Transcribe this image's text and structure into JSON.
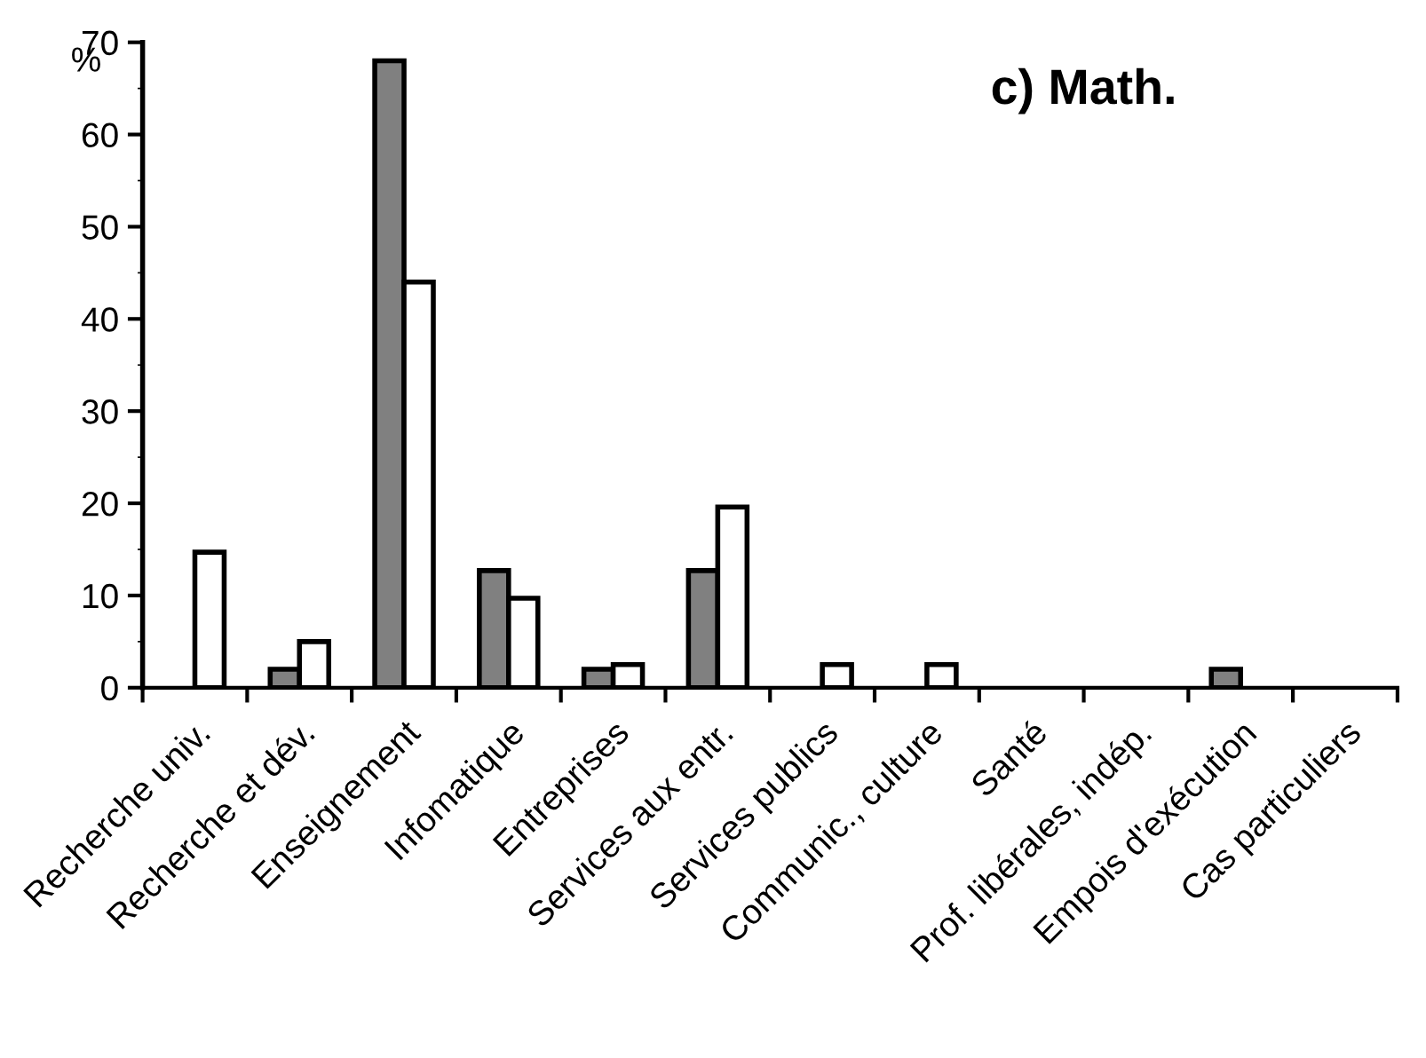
{
  "chart_data": {
    "type": "bar",
    "title": "c) Math.",
    "ylabel": "%",
    "categories": [
      "Recherche univ.",
      "Recherche et dév.",
      "Enseignement",
      "Infomatique",
      "Entreprises",
      "Services aux entr.",
      "Services publics",
      "Communic., culture",
      "Santé",
      "Prof. libérales, indép.",
      "Empois d'exécution",
      "Cas particuliers"
    ],
    "series": [
      {
        "color": "#808080",
        "values": [
          0,
          2,
          68,
          12.7,
          2,
          12.7,
          0,
          0,
          0,
          0,
          2,
          0
        ]
      },
      {
        "color": "#ffffff",
        "values": [
          14.7,
          5,
          44,
          9.7,
          2.5,
          19.6,
          2.5,
          2.5,
          0,
          0,
          0,
          0
        ]
      }
    ],
    "ylim": [
      0,
      70
    ],
    "yticks": [
      0,
      10,
      20,
      30,
      40,
      50,
      60,
      70
    ],
    "grid": false,
    "legend": false
  }
}
